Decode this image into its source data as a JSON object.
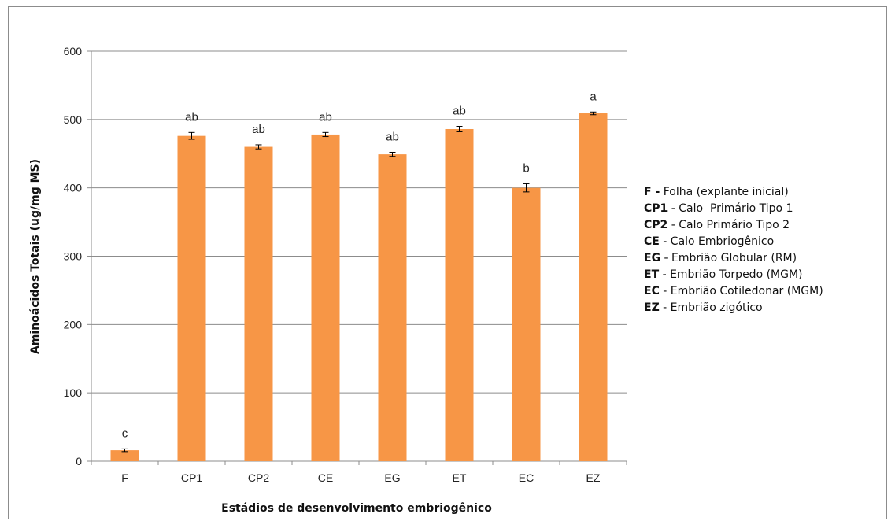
{
  "chart_data": {
    "type": "bar",
    "xlabel": "Estádios de desenvolvimento embriogênico",
    "ylabel": "Aminoácidos Totais (ug/mg MS)",
    "ylim": [
      0,
      600
    ],
    "yticks": [
      0,
      100,
      200,
      300,
      400,
      500,
      600
    ],
    "grid": true,
    "categories": [
      "F",
      "CP1",
      "CP2",
      "CE",
      "EG",
      "ET",
      "EC",
      "EZ"
    ],
    "values": [
      16,
      476,
      460,
      478,
      449,
      486,
      400,
      509
    ],
    "errors": [
      2,
      5,
      3,
      3,
      3,
      4,
      6,
      2
    ],
    "significance": [
      "c",
      "ab",
      "ab",
      "ab",
      "ab",
      "ab",
      "b",
      "a"
    ],
    "bar_color": "#F79646",
    "grid_color": "#8c8c8c"
  },
  "legend": {
    "placement": "right",
    "items": [
      {
        "code": "F -",
        "text": " Folha (explante inicial)"
      },
      {
        "code": "CP1",
        "text": " - Calo  Primário Tipo 1"
      },
      {
        "code": "CP2",
        "text": " - Calo Primário Tipo 2"
      },
      {
        "code": "CE",
        "text": " - Calo Embriogênico"
      },
      {
        "code": "EG",
        "text": " - Embrião Globular (RM)"
      },
      {
        "code": "ET",
        "text": " - Embrião Torpedo (MGM)"
      },
      {
        "code": "EC",
        "text": " - Embrião Cotiledonar (MGM)"
      },
      {
        "code": "EZ",
        "text": " - Embrião zigótico"
      }
    ]
  }
}
